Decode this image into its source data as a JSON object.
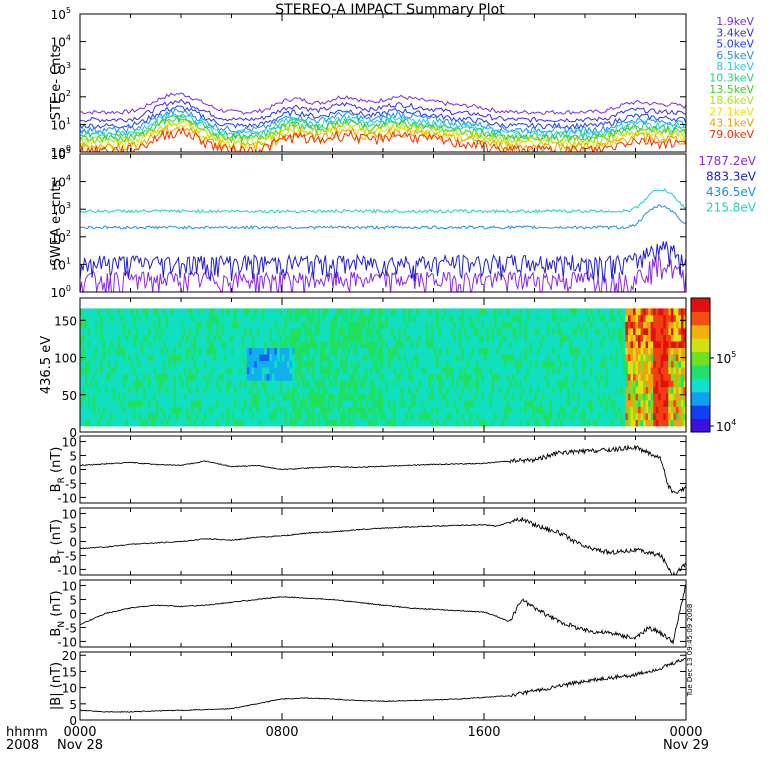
{
  "chart_data": {
    "title": "STEREO-A IMPACT Summary Plot",
    "type": "line",
    "x_axis": {
      "ticks": [
        {
          "label": "0000",
          "sub": "Nov 28",
          "hour": 0
        },
        {
          "label": "0800",
          "sub": "",
          "hour": 8
        },
        {
          "label": "1600",
          "sub": "",
          "hour": 16
        },
        {
          "label": "0000",
          "sub": "Nov 29",
          "hour": 24
        }
      ],
      "corner_label": "hhmm",
      "corner_sub": "2008",
      "range": [
        0,
        24
      ]
    },
    "timestamp": "Tue Dec 13 09:45:09 2008",
    "panels": [
      {
        "id": "ste",
        "ylabel": "STE e- Cnts",
        "scale": "log",
        "yticks": [
          "10",
          "10",
          "10",
          "10",
          "10",
          "10"
        ],
        "ytick_exponents": [
          "0",
          "1",
          "2",
          "3",
          "4",
          "5"
        ],
        "ylim_exp": [
          0,
          5
        ],
        "series": [
          {
            "name": "1.9keV",
            "color": "#7b2fd6",
            "base": 28
          },
          {
            "name": "3.4keV",
            "color": "#3a2ee0",
            "base": 15
          },
          {
            "name": "5.0keV",
            "color": "#1f3ef0",
            "base": 9
          },
          {
            "name": "6.5keV",
            "color": "#1f8ff0",
            "base": 6.5
          },
          {
            "name": "8.1keV",
            "color": "#1fd0e0",
            "base": 5
          },
          {
            "name": "10.3keV",
            "color": "#22d080",
            "base": 4
          },
          {
            "name": "13.5keV",
            "color": "#3ad020",
            "base": 3.2
          },
          {
            "name": "18.6keV",
            "color": "#b0e020",
            "base": 2.6
          },
          {
            "name": "27.1keV",
            "color": "#f0e000",
            "base": 2.0
          },
          {
            "name": "43.1keV",
            "color": "#f0a000",
            "base": 1.6
          },
          {
            "name": "79.0keV",
            "color": "#f03000",
            "base": 1.2
          }
        ]
      },
      {
        "id": "swea",
        "ylabel": "SWEA e- cnts",
        "scale": "log",
        "yticks": [
          "10",
          "10",
          "10",
          "10",
          "10",
          "10"
        ],
        "ytick_exponents": [
          "0",
          "1",
          "2",
          "3",
          "4",
          "5"
        ],
        "ylim_exp": [
          0,
          5
        ],
        "series": [
          {
            "name": "1787.2eV",
            "color": "#8a2be2",
            "base": 3
          },
          {
            "name": "883.3eV",
            "color": "#2020d0",
            "base": 12
          },
          {
            "name": "436.5eV",
            "color": "#2090e0",
            "base": 220
          },
          {
            "name": "215.8eV",
            "color": "#20d0c0",
            "base": 850
          }
        ]
      },
      {
        "id": "pad",
        "ylabel": "436.5 eV",
        "scale": "linear",
        "yticks": [
          "0",
          "50",
          "100",
          "150"
        ],
        "ylim": [
          0,
          180
        ],
        "colorbar": {
          "labels": [
            "10",
            "10"
          ],
          "label_exponents": [
            "4",
            "5"
          ]
        }
      },
      {
        "id": "br",
        "ylabel": "B",
        "ylabel_sub": "R",
        "ylabel_unit": "(nT)",
        "scale": "linear",
        "yticks": [
          "-10",
          "-5",
          "0",
          "5",
          "10"
        ],
        "ylim": [
          -12,
          12
        ]
      },
      {
        "id": "bt",
        "ylabel": "B",
        "ylabel_sub": "T",
        "ylabel_unit": "(nT)",
        "scale": "linear",
        "yticks": [
          "-10",
          "-5",
          "0",
          "5",
          "10"
        ],
        "ylim": [
          -12,
          12
        ]
      },
      {
        "id": "bn",
        "ylabel": "B",
        "ylabel_sub": "N",
        "ylabel_unit": "(nT)",
        "scale": "linear",
        "yticks": [
          "-10",
          "-5",
          "0",
          "5",
          "10"
        ],
        "ylim": [
          -12,
          12
        ]
      },
      {
        "id": "bmag",
        "ylabel": "|B|",
        "ylabel_unit": "(nT)",
        "scale": "linear",
        "yticks": [
          "0",
          "5",
          "10",
          "15",
          "20"
        ],
        "ylim": [
          0,
          21
        ]
      }
    ],
    "traces": {
      "br": [
        [
          0,
          1.5
        ],
        [
          1,
          2
        ],
        [
          2,
          2.5
        ],
        [
          3,
          1.8
        ],
        [
          4,
          1.5
        ],
        [
          5,
          3
        ],
        [
          6,
          1
        ],
        [
          7,
          1.5
        ],
        [
          8,
          0
        ],
        [
          9,
          0.5
        ],
        [
          10,
          1
        ],
        [
          11,
          0.8
        ],
        [
          12,
          1.2
        ],
        [
          13,
          1.5
        ],
        [
          14,
          1.8
        ],
        [
          15,
          2
        ],
        [
          16,
          2.2
        ],
        [
          17,
          3
        ],
        [
          18,
          3.5
        ],
        [
          19,
          6
        ],
        [
          20,
          6.5
        ],
        [
          21,
          7
        ],
        [
          22,
          8
        ],
        [
          23,
          4
        ],
        [
          23.3,
          -6
        ],
        [
          23.6,
          -9
        ],
        [
          24,
          -6
        ],
        [
          24.3,
          1
        ],
        [
          24.6,
          6
        ],
        [
          25,
          4
        ]
      ],
      "bt": [
        [
          0,
          -2.5
        ],
        [
          1,
          -2
        ],
        [
          2,
          -1
        ],
        [
          3,
          -0.5
        ],
        [
          4,
          0
        ],
        [
          5,
          1
        ],
        [
          6,
          0.5
        ],
        [
          7,
          1.5
        ],
        [
          8,
          2
        ],
        [
          9,
          3
        ],
        [
          10,
          3.5
        ],
        [
          11,
          4.2
        ],
        [
          12,
          4.8
        ],
        [
          13,
          5.2
        ],
        [
          14,
          5.5
        ],
        [
          15,
          5.8
        ],
        [
          16,
          6
        ],
        [
          16.5,
          5.5
        ],
        [
          17,
          7
        ],
        [
          17.5,
          8
        ],
        [
          18,
          6
        ],
        [
          19,
          3
        ],
        [
          20,
          -2
        ],
        [
          21,
          -4
        ],
        [
          22,
          -3
        ],
        [
          23,
          -5
        ],
        [
          23.5,
          -12
        ],
        [
          24,
          -8
        ],
        [
          24.5,
          6
        ],
        [
          25,
          10
        ]
      ],
      "bn": [
        [
          0,
          -4
        ],
        [
          1,
          0
        ],
        [
          2,
          2
        ],
        [
          3,
          3
        ],
        [
          4,
          2.5
        ],
        [
          5,
          3
        ],
        [
          6,
          4
        ],
        [
          7,
          5
        ],
        [
          8,
          6
        ],
        [
          9,
          5.5
        ],
        [
          10,
          5
        ],
        [
          11,
          4
        ],
        [
          12,
          3
        ],
        [
          13,
          2
        ],
        [
          14,
          1.5
        ],
        [
          15,
          1
        ],
        [
          16,
          0.5
        ],
        [
          16.5,
          -1
        ],
        [
          17,
          -3
        ],
        [
          17.5,
          5
        ],
        [
          18,
          2
        ],
        [
          19,
          -3
        ],
        [
          20,
          -6
        ],
        [
          21,
          -7
        ],
        [
          22,
          -9
        ],
        [
          22.5,
          -5
        ],
        [
          23,
          -7
        ],
        [
          23.5,
          -10
        ],
        [
          24,
          11
        ],
        [
          24.5,
          5
        ],
        [
          25,
          -8
        ]
      ],
      "bmag": [
        [
          0,
          3
        ],
        [
          1,
          2.5
        ],
        [
          2,
          2.5
        ],
        [
          3,
          2.8
        ],
        [
          4,
          3
        ],
        [
          5,
          3.2
        ],
        [
          6,
          3.5
        ],
        [
          7,
          5
        ],
        [
          8,
          6.5
        ],
        [
          9,
          6.8
        ],
        [
          10,
          6.5
        ],
        [
          11,
          6
        ],
        [
          12,
          5.8
        ],
        [
          13,
          6
        ],
        [
          14,
          6.2
        ],
        [
          15,
          6.5
        ],
        [
          16,
          7
        ],
        [
          17,
          7.5
        ],
        [
          18,
          9
        ],
        [
          19,
          10.5
        ],
        [
          20,
          12
        ],
        [
          21,
          13
        ],
        [
          22,
          14
        ],
        [
          23,
          16
        ],
        [
          24,
          19
        ],
        [
          25,
          18
        ]
      ],
      "ste_bursts": [
        [
          3.5,
          3.2
        ],
        [
          4.5,
          2.2
        ],
        [
          8.5,
          3.0
        ],
        [
          10.5,
          3.6
        ],
        [
          12.5,
          3.4
        ],
        [
          14,
          2.2
        ],
        [
          15.5,
          1.6
        ],
        [
          22,
          2.2
        ],
        [
          23.5,
          1.8
        ]
      ],
      "swea_rise": [
        [
          0,
          1
        ],
        [
          20,
          1
        ],
        [
          21,
          1.5
        ],
        [
          22.5,
          5
        ],
        [
          23,
          8
        ],
        [
          24,
          2
        ]
      ]
    }
  }
}
